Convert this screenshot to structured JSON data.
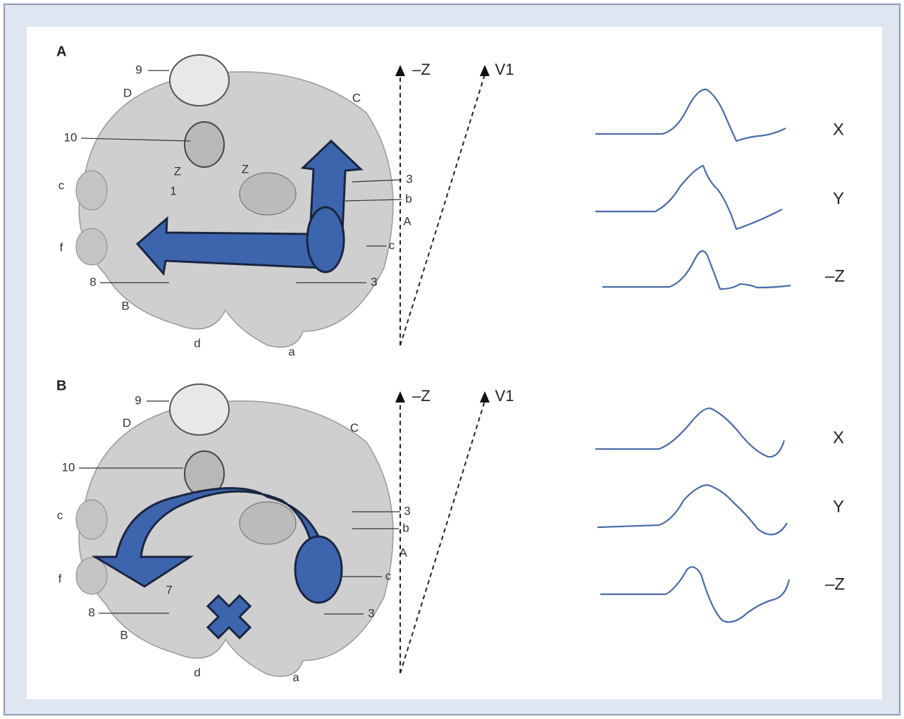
{
  "panels": [
    {
      "label": "A",
      "heart_labels": [
        "9",
        "D",
        "C",
        "10",
        "Z",
        "Z",
        "c",
        "1",
        "3",
        "b",
        "A",
        "c",
        "f",
        "8",
        "3",
        "B",
        "d",
        "a"
      ],
      "axes": [
        "–Z",
        "V1"
      ],
      "traces": [
        "X",
        "Y",
        "–Z"
      ]
    },
    {
      "label": "B",
      "heart_labels": [
        "9",
        "D",
        "C",
        "10",
        "c",
        "3",
        "b",
        "A",
        "c",
        "f",
        "7",
        "8",
        "3",
        "B",
        "d",
        "a"
      ],
      "axes": [
        "–Z",
        "V1"
      ],
      "traces": [
        "X",
        "Y",
        "–Z"
      ]
    }
  ]
}
